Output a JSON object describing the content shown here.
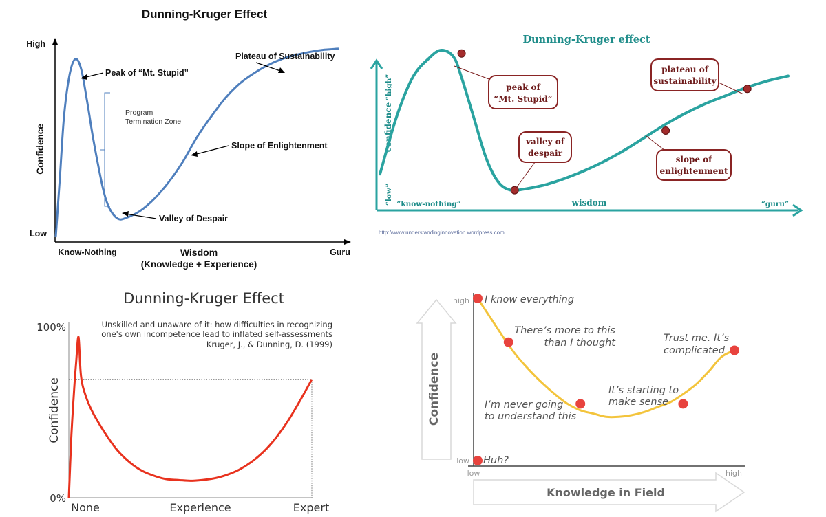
{
  "chart_data": [
    {
      "type": "line",
      "title": "Dunning-Kruger Effect",
      "xlabel": "Wisdom",
      "xlabel_sub": "(Knowledge  +  Experience)",
      "ylabel": "Confidence",
      "x_ticks": [
        "Know-Nothing",
        "Guru"
      ],
      "y_ticks": [
        "Low",
        "High"
      ],
      "xlim": [
        0,
        100
      ],
      "ylim": [
        0,
        100
      ],
      "x": [
        0,
        1.5,
        3,
        5,
        7,
        9,
        11,
        13,
        15,
        17,
        19,
        22,
        25,
        30,
        35,
        40,
        45,
        50,
        55,
        60,
        65,
        70,
        75,
        80,
        85,
        90,
        95,
        100
      ],
      "y": [
        0,
        30,
        60,
        80,
        87,
        82,
        67,
        50,
        35,
        22,
        14,
        9,
        9.5,
        13,
        19,
        27,
        37,
        49,
        59,
        68,
        75,
        80,
        84,
        87,
        89,
        90.5,
        91.5,
        92
      ],
      "annotations": [
        {
          "text": "Peak of “Mt. Stupid”",
          "x": 7,
          "y": 87
        },
        {
          "text": "Program",
          "text2": "Termination Zone"
        },
        {
          "text": "Plateau of Sustainability",
          "x": 75,
          "y": 84
        },
        {
          "text": "Slope of Enlightenment",
          "x": 47,
          "y": 42
        },
        {
          "text": "Valley of Despair",
          "x": 25,
          "y": 9.5
        }
      ],
      "color": "#4f7fbd"
    },
    {
      "type": "line",
      "title": "Dunning-Kruger effect",
      "xlabel": "wisdom",
      "ylabel": "confidence",
      "x_ticks": [
        "“know-nothing”",
        "“guru”"
      ],
      "y_ticks": [
        "“low”",
        "“high”"
      ],
      "xlim": [
        0,
        100
      ],
      "ylim": [
        0,
        100
      ],
      "x": [
        0,
        4,
        8,
        12,
        15,
        18,
        20,
        23,
        26,
        29,
        32,
        35,
        40,
        45,
        50,
        55,
        60,
        65,
        70,
        75,
        80,
        85,
        90,
        95,
        100
      ],
      "y": [
        20,
        55,
        80,
        92,
        97,
        93,
        80,
        55,
        30,
        15,
        10,
        10.5,
        13,
        17,
        22,
        28,
        35,
        43,
        51,
        58,
        64,
        69,
        74,
        78,
        81
      ],
      "points": [
        {
          "label": "peak of",
          "label2": "“Mt. Stupid”",
          "x": 20,
          "y": 95
        },
        {
          "label": "valley of",
          "label2": "despair",
          "x": 33,
          "y": 10
        },
        {
          "label": "slope of",
          "label2": "enlightenment",
          "x": 70,
          "y": 47
        },
        {
          "label": "plateau of",
          "label2": "sustainability",
          "x": 90,
          "y": 73
        }
      ],
      "source": "http://www.understandinginnovation.wordpress.com",
      "color": "#2aa3a0"
    },
    {
      "type": "line",
      "title": "Dunning-Kruger Effect",
      "subtitle": [
        "Unskilled and unaware of it: how difficulties in recognizing",
        "one's own incompetence lead to inflated self-assessments",
        "Kruger, J., & Dunning, D. (1999)"
      ],
      "xlabel": "",
      "ylabel": "Confidence",
      "x_ticks": [
        "None",
        "Experience",
        "Expert"
      ],
      "y_ticks": [
        "0%",
        "100%"
      ],
      "xlim": [
        0,
        100
      ],
      "ylim": [
        0,
        100
      ],
      "x": [
        0,
        1,
        2,
        3,
        4,
        5,
        7,
        10,
        15,
        20,
        25,
        30,
        35,
        40,
        45,
        50,
        55,
        60,
        65,
        70,
        75,
        80,
        85,
        90,
        95,
        100
      ],
      "y": [
        0,
        35,
        60,
        80,
        95,
        72,
        60,
        50,
        38,
        28,
        21,
        16,
        13,
        11,
        10.5,
        10,
        10.5,
        11.5,
        13.5,
        16.5,
        21,
        27,
        35,
        45,
        57,
        70
      ],
      "reference_level": 70,
      "color": "#e8321e"
    },
    {
      "type": "line",
      "xlabel": "Knowledge in Field",
      "ylabel": "Confidence",
      "x_ticks": [
        "low",
        "high"
      ],
      "y_ticks": [
        "low",
        "high"
      ],
      "xlim": [
        0,
        100
      ],
      "ylim": [
        0,
        100
      ],
      "x": [
        0,
        5,
        10,
        15,
        20,
        25,
        30,
        35,
        40,
        45,
        50,
        55,
        60,
        65,
        70,
        75,
        80,
        85,
        90,
        95,
        100
      ],
      "y": [
        100,
        88,
        76,
        65,
        56,
        48,
        41,
        35,
        31,
        29,
        27,
        27,
        28,
        30,
        33,
        36,
        41,
        47,
        55,
        64,
        68
      ],
      "points": [
        {
          "label": "Huh?",
          "x": 0,
          "y": 0
        },
        {
          "label": "I know everything",
          "x": 0,
          "y": 100
        },
        {
          "label": "There’s more to this",
          "label2": "than I thought",
          "x": 12,
          "y": 73
        },
        {
          "label": "I’m never going",
          "label2": "to understand this",
          "x": 40,
          "y": 35
        },
        {
          "label": "It’s starting to",
          "label2": "make sense",
          "x": 80,
          "y": 35
        },
        {
          "label": "Trust me. It’s",
          "label2": "complicated",
          "x": 100,
          "y": 68
        }
      ],
      "color": "#f3c43c",
      "point_color": "#e8433e"
    }
  ]
}
